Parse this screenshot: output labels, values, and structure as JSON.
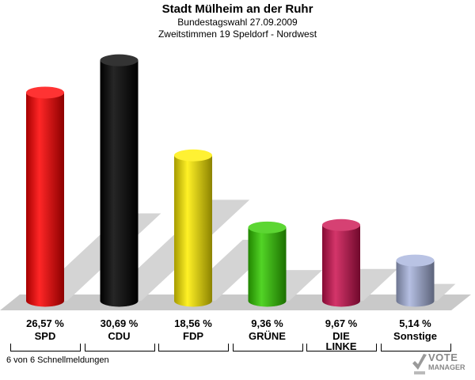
{
  "header": {
    "title": "Stadt Mülheim an der Ruhr",
    "subtitle1": "Bundestagswahl 27.09.2009",
    "subtitle2": "Zweitstimmen 19 Speldorf - Nordwest"
  },
  "footer": {
    "text": "6 von 6 Schnellmeldungen"
  },
  "logo": {
    "line1": "VOTE",
    "line2": "MANAGER"
  },
  "chart_data": {
    "type": "bar",
    "title": "Stadt Mülheim an der Ruhr",
    "categories": [
      "SPD",
      "CDU",
      "FDP",
      "GRÜNE",
      "DIE LINKE",
      "Sonstige"
    ],
    "category_lines": [
      [
        "SPD"
      ],
      [
        "CDU"
      ],
      [
        "FDP"
      ],
      [
        "GRÜNE"
      ],
      [
        "DIE",
        "LINKE"
      ],
      [
        "Sonstige"
      ]
    ],
    "values": [
      26.57,
      30.69,
      18.56,
      9.36,
      9.67,
      5.14
    ],
    "value_labels": [
      "26,57 %",
      "30,69 %",
      "18,56 %",
      "9,36 %",
      "9,67 %",
      "5,14 %"
    ],
    "colors": [
      "#ff0000",
      "#000000",
      "#ffee00",
      "#33cc00",
      "#cc1150",
      "#a8b4dd"
    ],
    "grid": false,
    "legend": "none"
  }
}
